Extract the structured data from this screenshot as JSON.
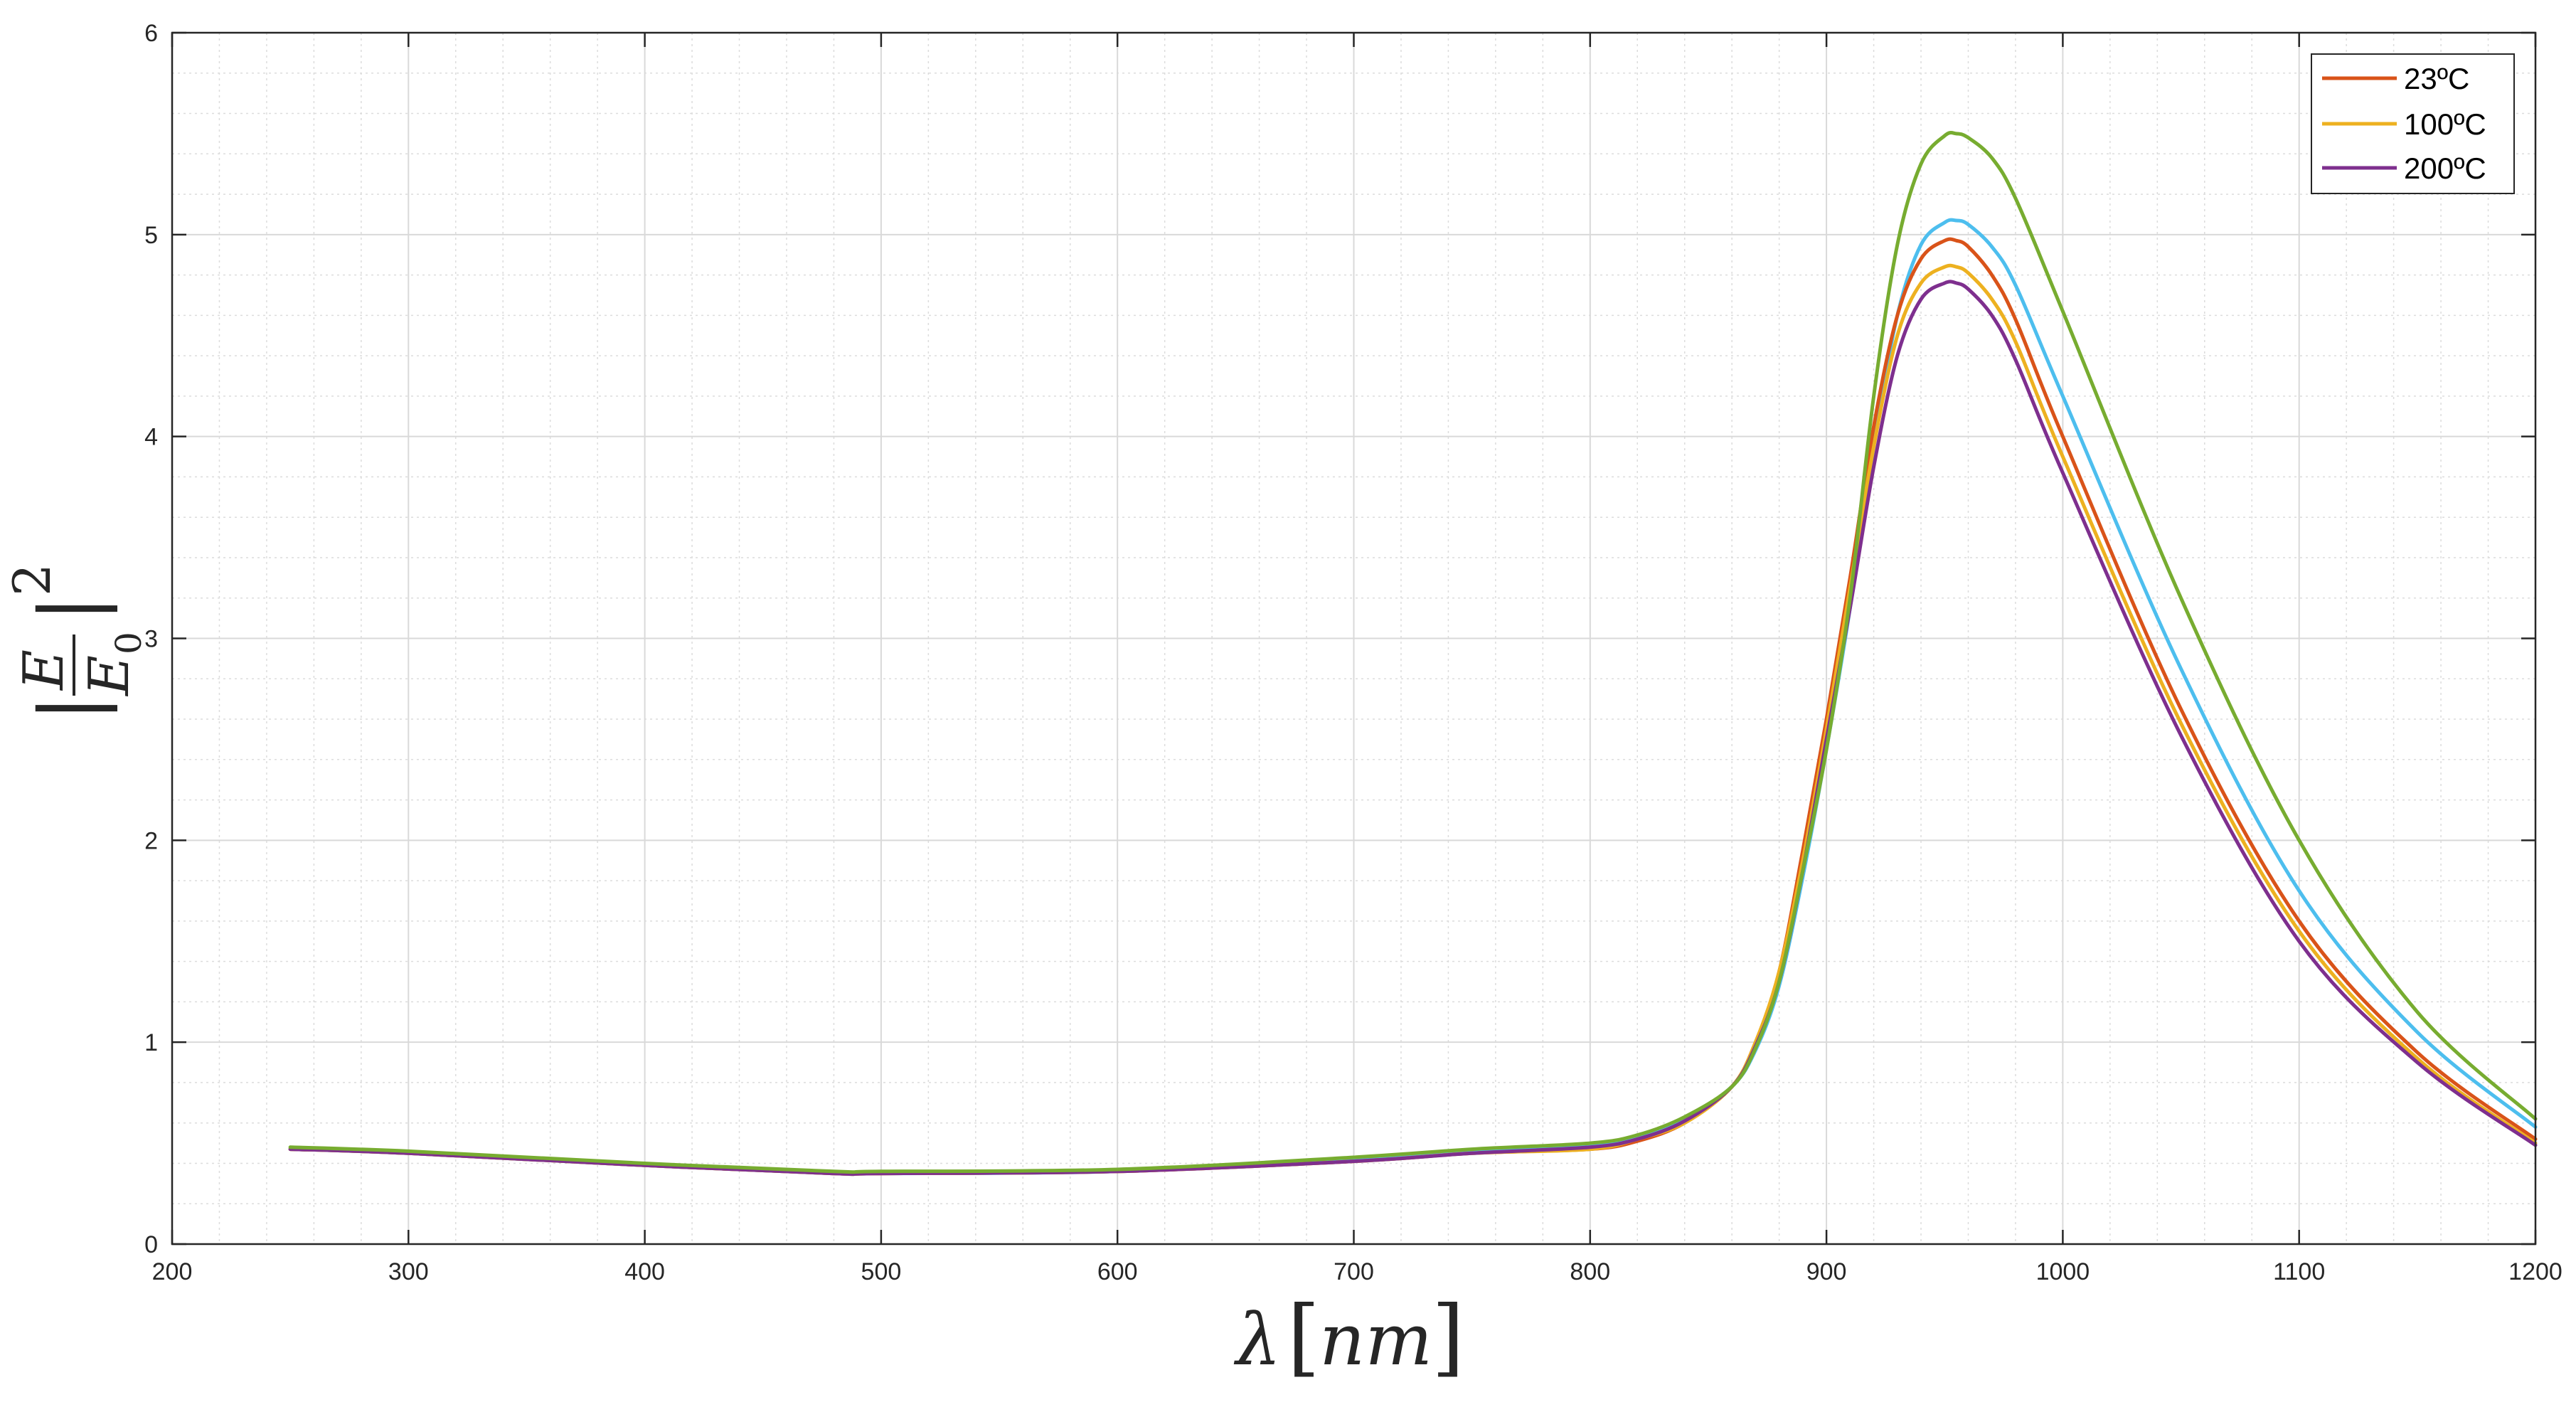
{
  "chart_data": {
    "type": "line",
    "title": "",
    "xlabel": {
      "symbol": "λ",
      "open": "[",
      "unit": "nm",
      "close": "]"
    },
    "ylabel": {
      "bar": "|",
      "numerator": "E",
      "denominator": "E",
      "subscript": "0",
      "exponent": "2"
    },
    "xlim": [
      200,
      1200
    ],
    "ylim": [
      0,
      6
    ],
    "xticks": [
      200,
      300,
      400,
      500,
      600,
      700,
      800,
      900,
      1000,
      1100,
      1200
    ],
    "yticks": [
      0,
      1,
      2,
      3,
      4,
      5,
      6
    ],
    "grid": true,
    "minor_grid": true,
    "legend_position": "top-right",
    "legend": [
      "23ºC",
      "100ºC",
      "200ºC"
    ],
    "x": [
      250,
      300,
      400,
      480,
      500,
      600,
      700,
      750,
      800,
      820,
      840,
      860,
      870,
      880,
      890,
      900,
      910,
      920,
      930,
      940,
      950,
      955,
      960,
      970,
      980,
      1000,
      1050,
      1100,
      1150,
      1200
    ],
    "series": [
      {
        "name": "23ºC",
        "color": "#D95319",
        "values": [
          0.47,
          0.45,
          0.39,
          0.35,
          0.35,
          0.36,
          0.41,
          0.45,
          0.47,
          0.51,
          0.6,
          0.78,
          1.0,
          1.35,
          1.95,
          2.6,
          3.3,
          4.05,
          4.6,
          4.88,
          4.97,
          4.97,
          4.94,
          4.8,
          4.58,
          4.0,
          2.65,
          1.6,
          0.95,
          0.52
        ]
      },
      {
        "name": "100ºC",
        "color": "#EDB120",
        "values": [
          0.47,
          0.45,
          0.39,
          0.35,
          0.35,
          0.36,
          0.41,
          0.45,
          0.47,
          0.52,
          0.6,
          0.78,
          1.0,
          1.35,
          1.9,
          2.55,
          3.25,
          3.95,
          4.5,
          4.76,
          4.84,
          4.84,
          4.81,
          4.68,
          4.47,
          3.9,
          2.58,
          1.55,
          0.92,
          0.5
        ]
      },
      {
        "name": "200ºC",
        "color": "#7E2F8E",
        "values": [
          0.47,
          0.45,
          0.39,
          0.35,
          0.35,
          0.36,
          0.41,
          0.45,
          0.48,
          0.52,
          0.61,
          0.78,
          0.98,
          1.3,
          1.85,
          2.5,
          3.15,
          3.85,
          4.4,
          4.68,
          4.76,
          4.76,
          4.73,
          4.6,
          4.38,
          3.82,
          2.52,
          1.5,
          0.9,
          0.49
        ]
      },
      {
        "color": "#4DBEEE",
        "values": [
          0.47,
          0.45,
          0.39,
          0.35,
          0.35,
          0.36,
          0.42,
          0.46,
          0.49,
          0.53,
          0.62,
          0.78,
          0.96,
          1.28,
          1.82,
          2.45,
          3.15,
          3.95,
          4.6,
          4.95,
          5.06,
          5.07,
          5.05,
          4.94,
          4.75,
          4.2,
          2.85,
          1.75,
          1.05,
          0.58
        ]
      },
      {
        "color": "#77AC30",
        "values": [
          0.48,
          0.46,
          0.4,
          0.36,
          0.36,
          0.37,
          0.43,
          0.47,
          0.5,
          0.54,
          0.63,
          0.78,
          0.97,
          1.3,
          1.85,
          2.45,
          3.2,
          4.2,
          4.95,
          5.35,
          5.49,
          5.5,
          5.48,
          5.38,
          5.18,
          4.62,
          3.2,
          2.0,
          1.15,
          0.62
        ]
      }
    ]
  }
}
